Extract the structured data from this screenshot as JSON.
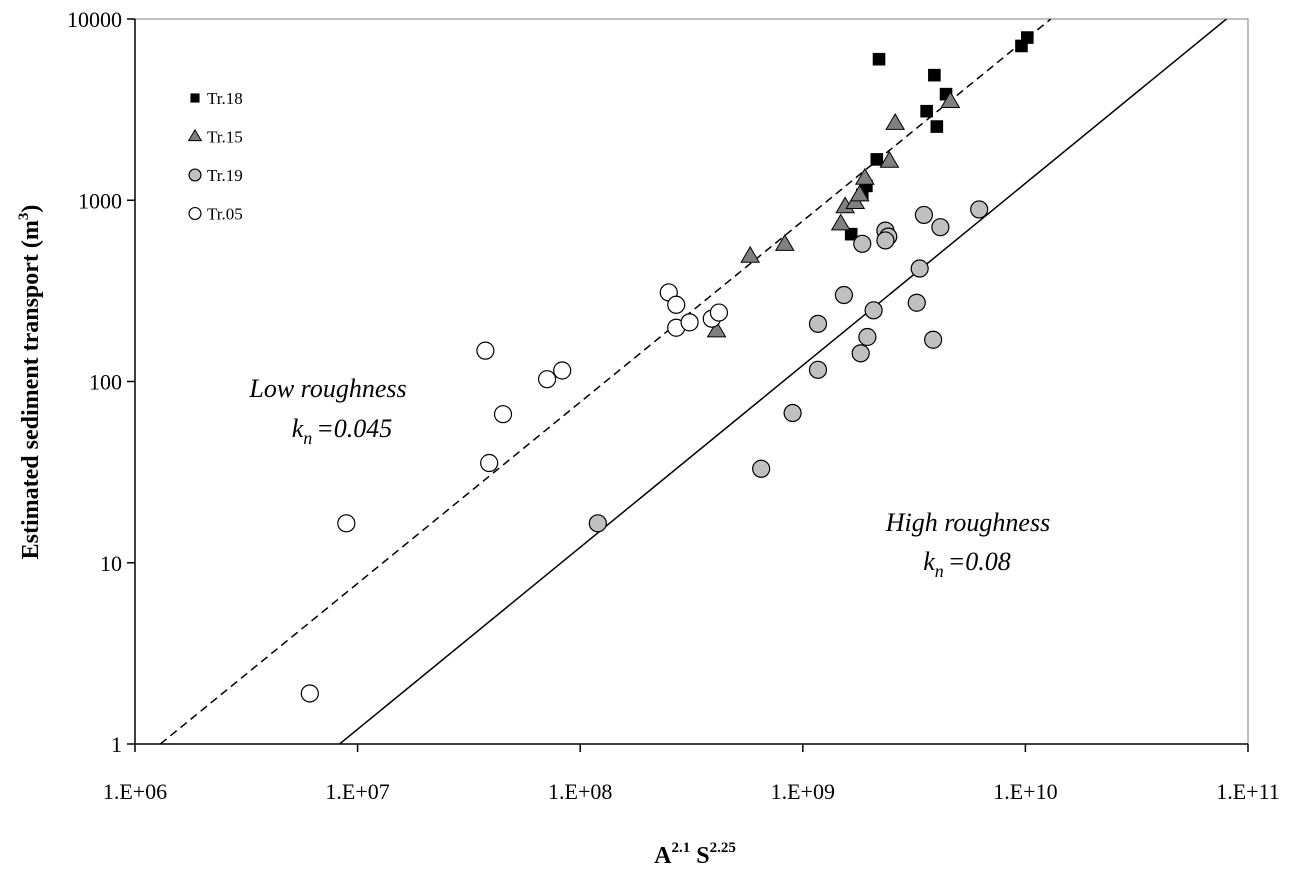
{
  "chart_data": {
    "type": "scatter",
    "title": "",
    "xlabel": {
      "base1": "A",
      "exp1": "2.1",
      "base2": "S",
      "exp2": "2.25"
    },
    "ylabel": {
      "text": "Estimated sediment transport (m",
      "exp": "3",
      "close": ")"
    },
    "x_scale": "log",
    "y_scale": "log",
    "xlim": [
      1000000,
      100000000000
    ],
    "ylim": [
      1,
      10000
    ],
    "x_ticks": [
      1000000,
      10000000,
      100000000,
      1000000000,
      10000000000,
      100000000000
    ],
    "x_tick_labels": [
      "1.E+06",
      "1.E+07",
      "1.E+08",
      "1.E+09",
      "1.E+10",
      "1.E+11"
    ],
    "y_ticks": [
      1,
      10,
      100,
      1000,
      10000
    ],
    "y_tick_labels": [
      "1",
      "10",
      "100",
      "1000",
      "10000"
    ],
    "grid": false,
    "legend_position": "top-left",
    "series": [
      {
        "name": "Tr.18",
        "marker": "square",
        "color": "#000000",
        "points": [
          [
            2200000000.0,
            6000
          ],
          [
            3900000000.0,
            4900
          ],
          [
            4400000000.0,
            3850
          ],
          [
            3600000000.0,
            3100
          ],
          [
            4000000000.0,
            2550
          ],
          [
            2150000000.0,
            1680
          ],
          [
            1930000000.0,
            1200
          ],
          [
            1850000000.0,
            1070
          ],
          [
            1650000000.0,
            650
          ],
          [
            9600000000.0,
            7100
          ],
          [
            10200000000.0,
            7900
          ]
        ]
      },
      {
        "name": "Tr.15",
        "marker": "triangle",
        "color": "#808080",
        "points": [
          [
            410000000.0,
            190
          ],
          [
            580000000.0,
            490
          ],
          [
            830000000.0,
            570
          ],
          [
            1480000000.0,
            740
          ],
          [
            1550000000.0,
            920
          ],
          [
            1720000000.0,
            970
          ],
          [
            1800000000.0,
            1070
          ],
          [
            1900000000.0,
            1320
          ],
          [
            2450000000.0,
            1640
          ],
          [
            2600000000.0,
            2650
          ],
          [
            4600000000.0,
            3500
          ]
        ]
      },
      {
        "name": "Tr.19",
        "marker": "circle",
        "color": "#c0c0c0",
        "points": [
          [
            120000000.0,
            16.5
          ],
          [
            650000000.0,
            33
          ],
          [
            900000000.0,
            67
          ],
          [
            1170000000.0,
            116
          ],
          [
            1170000000.0,
            208
          ],
          [
            1530000000.0,
            300
          ],
          [
            1820000000.0,
            143
          ],
          [
            1950000000.0,
            176
          ],
          [
            2080000000.0,
            247
          ],
          [
            1850000000.0,
            575
          ],
          [
            2350000000.0,
            680
          ],
          [
            2420000000.0,
            630
          ],
          [
            2350000000.0,
            600
          ],
          [
            3250000000.0,
            272
          ],
          [
            3350000000.0,
            420
          ],
          [
            3500000000.0,
            830
          ],
          [
            3850000000.0,
            170
          ],
          [
            4150000000.0,
            710
          ],
          [
            6200000000.0,
            890
          ]
        ]
      },
      {
        "name": "Tr.05",
        "marker": "circle",
        "color": "#ffffff",
        "points": [
          [
            6100000.0,
            1.9
          ],
          [
            8900000.0,
            16.5
          ],
          [
            37500000.0,
            148
          ],
          [
            39000000.0,
            35.5
          ],
          [
            45000000.0,
            66
          ],
          [
            71000000.0,
            103
          ],
          [
            83000000.0,
            115
          ],
          [
            250000000.0,
            310
          ],
          [
            270000000.0,
            265
          ],
          [
            270000000.0,
            198
          ],
          [
            310000000.0,
            212
          ],
          [
            390000000.0,
            222
          ],
          [
            420000000.0,
            240
          ]
        ]
      }
    ],
    "lines": [
      {
        "name": "low",
        "style": "dashed",
        "from": [
          1300000,
          1
        ],
        "to": [
          13000000000,
          10000
        ]
      },
      {
        "name": "high",
        "style": "solid",
        "from": [
          8300000,
          1
        ],
        "to": [
          80000000000,
          10000
        ]
      }
    ],
    "annotations": [
      {
        "line1": "Low roughness",
        "k": "k",
        "sub": "n",
        "value": "=0.045"
      },
      {
        "line1": "High roughness",
        "k": "k",
        "sub": "n",
        "value": "=0.08"
      }
    ]
  }
}
